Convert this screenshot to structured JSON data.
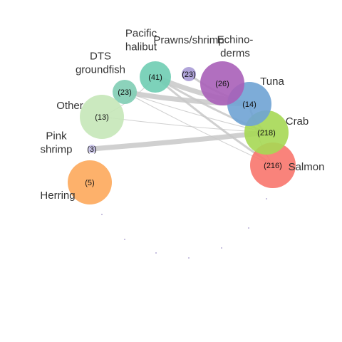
{
  "diagram": {
    "nodes": [
      {
        "id": "salmon",
        "label_lines": [
          "Salmon"
        ],
        "count": "(216)",
        "color": "#f8766d"
      },
      {
        "id": "crab",
        "label_lines": [
          "Crab"
        ],
        "count": "(218)",
        "color": "#a6d854"
      },
      {
        "id": "tuna",
        "label_lines": [
          "Tuna"
        ],
        "count": "(14)",
        "color": "#6fa3d4"
      },
      {
        "id": "echinoderms",
        "label_lines": [
          "Echino-",
          "derms"
        ],
        "count": "(26)",
        "color": "#a95fb8"
      },
      {
        "id": "prawns-shrimp",
        "label_lines": [
          "Prawns/shrimp"
        ],
        "count": "(23)",
        "color": "#a99bd6"
      },
      {
        "id": "pacific-halibut",
        "label_lines": [
          "Pacific",
          "halibut"
        ],
        "count": "(41)",
        "color": "#6fcdb2"
      },
      {
        "id": "dts-groundfish",
        "label_lines": [
          "DTS",
          "groundfish"
        ],
        "count": "(23)",
        "color": "#7fcdb4"
      },
      {
        "id": "other",
        "label_lines": [
          "Other"
        ],
        "count": "(13)",
        "color": "#c5e7b8"
      },
      {
        "id": "pink-shrimp",
        "label_lines": [
          "Pink",
          "shrimp"
        ],
        "count": "(3)",
        "color": "#c8c2e8"
      },
      {
        "id": "herring",
        "label_lines": [
          "Herring"
        ],
        "count": "(5)",
        "color": "#fda85b"
      }
    ],
    "edges": [
      {
        "from": "pink-shrimp",
        "to": "crab",
        "weight": "heavy"
      },
      {
        "from": "pacific-halibut",
        "to": "tuna",
        "weight": "heavy"
      },
      {
        "from": "dts-groundfish",
        "to": "tuna",
        "weight": "heavy"
      },
      {
        "from": "prawns-shrimp",
        "to": "tuna",
        "weight": "medium"
      },
      {
        "from": "pacific-halibut",
        "to": "crab",
        "weight": "medium"
      },
      {
        "from": "pacific-halibut",
        "to": "salmon",
        "weight": "medium"
      },
      {
        "from": "dts-groundfish",
        "to": "crab",
        "weight": "light"
      },
      {
        "from": "other",
        "to": "crab",
        "weight": "light"
      },
      {
        "from": "other",
        "to": "pacific-halibut",
        "weight": "light"
      },
      {
        "from": "dts-groundfish",
        "to": "salmon",
        "weight": "light"
      },
      {
        "from": "tuna",
        "to": "crab",
        "weight": "medium"
      },
      {
        "from": "tuna",
        "to": "salmon",
        "weight": "light"
      }
    ],
    "empty_dot_color": "#b8aed6"
  }
}
